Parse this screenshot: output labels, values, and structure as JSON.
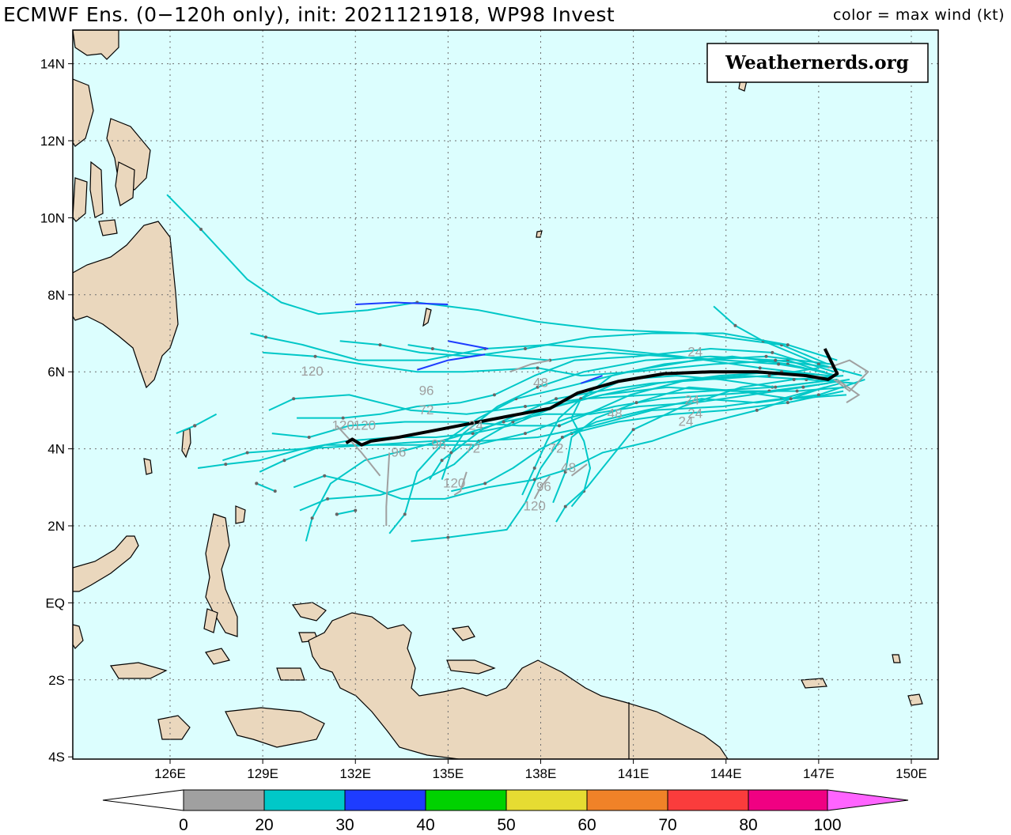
{
  "header": {
    "title": "ECMWF Ens. (0−120h only), init: 2021121918, WP98 Invest",
    "legend_caption": "color = max wind (kt)"
  },
  "watermark": "Weathernerds.org",
  "map": {
    "lon_range": [
      123.0,
      151.0
    ],
    "lat_range": [
      -4.0,
      15.0
    ],
    "lon_ticks": [
      "126E",
      "129E",
      "132E",
      "135E",
      "138E",
      "141E",
      "144E",
      "147E",
      "150E"
    ],
    "lat_ticks": [
      "14N",
      "12N",
      "10N",
      "8N",
      "6N",
      "4N",
      "2N",
      "EQ",
      "2S",
      "4S"
    ],
    "colors": {
      "ocean": "#dcfefe",
      "land": "#ead7bd",
      "coast": "#000000",
      "grid": "#6e6e6e",
      "ensemble_track": "#00c7c7",
      "strong_track": "#1e3cff",
      "weak_track": "#a0a0a0",
      "mean_track": "#000000"
    },
    "hour_labels": [
      "120",
      "96",
      "72",
      "48",
      "24",
      "120",
      "120",
      "96",
      "72",
      "120",
      "96",
      "72",
      "48",
      "96",
      "120",
      "24",
      "24",
      "48",
      "24",
      "24"
    ],
    "mean_track": [
      [
        147.2,
        6.6
      ],
      [
        147.6,
        5.95
      ],
      [
        147.3,
        5.8
      ],
      [
        146.6,
        5.9
      ],
      [
        145.0,
        6.0
      ],
      [
        143.5,
        6.0
      ],
      [
        142.0,
        5.95
      ],
      [
        140.5,
        5.75
      ],
      [
        139.2,
        5.45
      ],
      [
        138.3,
        5.05
      ],
      [
        137.3,
        4.9
      ],
      [
        136.0,
        4.7
      ],
      [
        134.7,
        4.5
      ],
      [
        133.4,
        4.3
      ],
      [
        132.5,
        4.2
      ],
      [
        132.2,
        4.1
      ],
      [
        131.9,
        4.25
      ],
      [
        131.7,
        4.15
      ]
    ]
  },
  "color_scale": {
    "ticks": [
      "0",
      "20",
      "30",
      "40",
      "50",
      "60",
      "70",
      "80",
      "100"
    ],
    "colors": [
      "#ffffff",
      "#a0a0a0",
      "#00c8c8",
      "#1e3cff",
      "#00d200",
      "#e6dc32",
      "#f08228",
      "#fa3c3c",
      "#f00082",
      "#ff64ff"
    ]
  }
}
